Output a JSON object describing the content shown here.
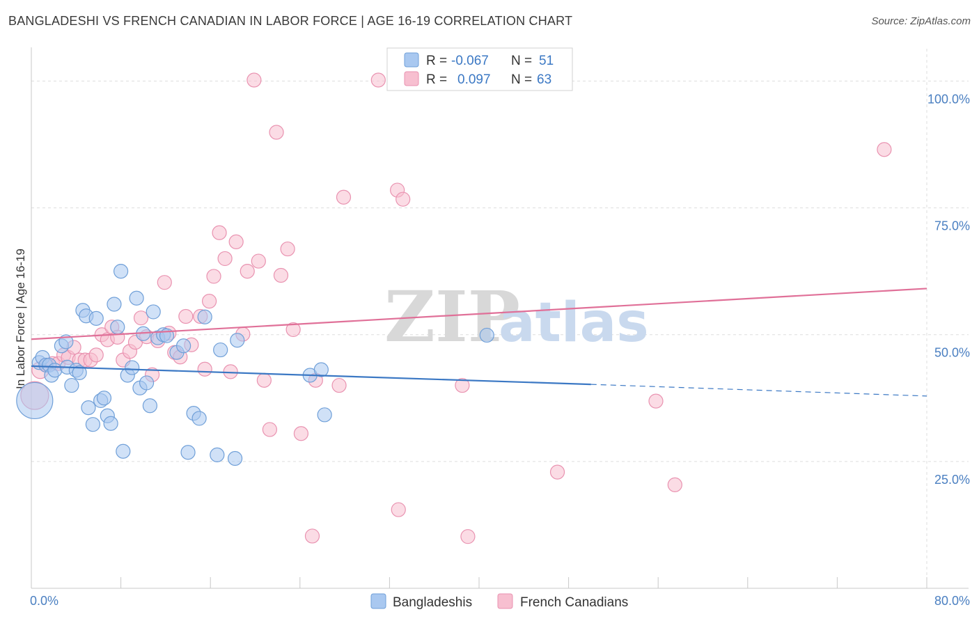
{
  "title": "BANGLADESHI VS FRENCH CANADIAN IN LABOR FORCE | AGE 16-19 CORRELATION CHART",
  "source": "Source: ZipAtlas.com",
  "watermark": {
    "zip": "ZIP",
    "atlas": "atlas"
  },
  "legend": {
    "r_label": "R =",
    "n_label": "N =",
    "rows": [
      {
        "r": "-0.067",
        "n": "51",
        "color": "#a9c8f0",
        "stroke": "#6f9fd8"
      },
      {
        "r": "0.097",
        "n": "63",
        "color": "#f7bfd0",
        "stroke": "#e992b0"
      }
    ]
  },
  "bottom_legend": [
    "Bangladeshis",
    "French Canadians"
  ],
  "chart_data": {
    "type": "scatter",
    "xlabel": "",
    "ylabel": "In Labor Force | Age 16-19",
    "xlim": [
      0,
      80
    ],
    "ylim": [
      0,
      105
    ],
    "x_tick_labels": [
      "0.0%",
      "80.0%"
    ],
    "y_ticks": [
      25,
      50,
      75,
      100
    ],
    "y_tick_labels": [
      "25.0%",
      "50.0%",
      "75.0%",
      "100.0%"
    ],
    "grid": true,
    "series": [
      {
        "name": "Bangladeshis",
        "color": "#a9c8f0",
        "stroke": "#6f9fd8",
        "trend_color": "#3b78c4",
        "trend": {
          "x0": 0,
          "y0": 43.8,
          "x1": 50,
          "y1": 40.2,
          "dash_x1": 80,
          "dash_y1": 37.9
        },
        "points": [
          [
            0.3,
            37,
            26
          ],
          [
            0.7,
            44.5,
            10
          ],
          [
            1.0,
            45.5,
            10
          ],
          [
            1.3,
            44,
            10
          ],
          [
            1.6,
            44,
            10
          ],
          [
            1.8,
            42,
            10
          ],
          [
            2.1,
            43,
            10
          ],
          [
            2.7,
            47.8,
            10
          ],
          [
            3.1,
            48.6,
            10
          ],
          [
            3.2,
            43.6,
            10
          ],
          [
            3.6,
            40,
            10
          ],
          [
            4.0,
            43,
            10
          ],
          [
            4.3,
            42.5,
            10
          ],
          [
            4.6,
            54.8,
            10
          ],
          [
            4.9,
            53.7,
            10
          ],
          [
            5.1,
            35.6,
            10
          ],
          [
            5.5,
            32.3,
            10
          ],
          [
            5.8,
            53.2,
            10
          ],
          [
            6.2,
            37,
            10
          ],
          [
            6.5,
            37.5,
            10
          ],
          [
            6.8,
            34,
            10
          ],
          [
            7.1,
            32.5,
            10
          ],
          [
            7.4,
            56,
            10
          ],
          [
            7.7,
            51.5,
            10
          ],
          [
            8.0,
            62.5,
            10
          ],
          [
            8.2,
            27,
            10
          ],
          [
            8.6,
            42,
            10
          ],
          [
            9.0,
            43.5,
            10
          ],
          [
            9.4,
            57.2,
            10
          ],
          [
            9.7,
            39.5,
            10
          ],
          [
            10.0,
            50.2,
            10
          ],
          [
            10.3,
            40.5,
            10
          ],
          [
            10.6,
            36,
            10
          ],
          [
            10.9,
            54.5,
            10
          ],
          [
            11.3,
            49.4,
            10
          ],
          [
            11.8,
            50,
            10
          ],
          [
            12.1,
            49.8,
            10
          ],
          [
            13.0,
            46.5,
            10
          ],
          [
            13.6,
            47.8,
            10
          ],
          [
            14.5,
            34.5,
            10
          ],
          [
            15.0,
            33.5,
            10
          ],
          [
            14.0,
            26.8,
            10
          ],
          [
            15.5,
            53.5,
            10
          ],
          [
            16.6,
            26.3,
            10
          ],
          [
            16.9,
            47,
            10
          ],
          [
            18.2,
            25.6,
            10
          ],
          [
            18.4,
            48.9,
            10
          ],
          [
            24.9,
            42,
            10
          ],
          [
            25.9,
            43.1,
            10
          ],
          [
            26.2,
            34.2,
            10
          ],
          [
            40.7,
            49.9,
            10
          ]
        ]
      },
      {
        "name": "French Canadians",
        "color": "#f7bfd0",
        "stroke": "#e992b0",
        "trend_color": "#e07098",
        "trend": {
          "x0": 0,
          "y0": 49.1,
          "x1": 80,
          "y1": 59.1
        },
        "points": [
          [
            0.3,
            38,
            20
          ],
          [
            0.8,
            43,
            12
          ],
          [
            1.4,
            44,
            10
          ],
          [
            1.9,
            44.3,
            10
          ],
          [
            2.4,
            44.3,
            10
          ],
          [
            2.9,
            46,
            10
          ],
          [
            3.3,
            45.5,
            10
          ],
          [
            3.8,
            47.5,
            10
          ],
          [
            4.3,
            45,
            10
          ],
          [
            4.8,
            45,
            10
          ],
          [
            5.3,
            45,
            10
          ],
          [
            5.8,
            46,
            10
          ],
          [
            6.3,
            50,
            10
          ],
          [
            6.8,
            49,
            10
          ],
          [
            7.2,
            51.5,
            10
          ],
          [
            7.7,
            49.5,
            10
          ],
          [
            8.2,
            45,
            10
          ],
          [
            8.8,
            46.7,
            10
          ],
          [
            9.3,
            48.5,
            10
          ],
          [
            9.8,
            53.3,
            10
          ],
          [
            10.3,
            49.6,
            10
          ],
          [
            10.8,
            42.1,
            10
          ],
          [
            11.3,
            48.8,
            10
          ],
          [
            11.9,
            60.3,
            10
          ],
          [
            12.3,
            50.3,
            10
          ],
          [
            12.8,
            46.5,
            10
          ],
          [
            13.3,
            45.6,
            10
          ],
          [
            13.8,
            53.6,
            10
          ],
          [
            14.3,
            48,
            10
          ],
          [
            15.1,
            53.6,
            10
          ],
          [
            15.5,
            43.2,
            10
          ],
          [
            15.9,
            56.6,
            10
          ],
          [
            16.3,
            61.5,
            10
          ],
          [
            16.8,
            70.1,
            10
          ],
          [
            17.3,
            65,
            10
          ],
          [
            17.8,
            42.7,
            10
          ],
          [
            18.3,
            68.3,
            10
          ],
          [
            18.9,
            50.1,
            10
          ],
          [
            19.3,
            62.5,
            10
          ],
          [
            19.9,
            100.2,
            10
          ],
          [
            20.3,
            64.5,
            10
          ],
          [
            20.8,
            41,
            10
          ],
          [
            21.3,
            31.3,
            10
          ],
          [
            21.9,
            89.9,
            10
          ],
          [
            22.3,
            61.7,
            10
          ],
          [
            22.9,
            66.9,
            10
          ],
          [
            23.4,
            51,
            10
          ],
          [
            24.1,
            30.5,
            10
          ],
          [
            25.1,
            10.3,
            10
          ],
          [
            25.4,
            41,
            10
          ],
          [
            27.5,
            40,
            10
          ],
          [
            27.9,
            77.1,
            10
          ],
          [
            31.0,
            100.2,
            10
          ],
          [
            32.7,
            78.5,
            10
          ],
          [
            33.2,
            76.7,
            10
          ],
          [
            32.8,
            15.5,
            10
          ],
          [
            38.5,
            40,
            10
          ],
          [
            39.0,
            10.2,
            10
          ],
          [
            39.2,
            100,
            10
          ],
          [
            47.0,
            22.9,
            10
          ],
          [
            55.8,
            36.9,
            10
          ],
          [
            57.5,
            20.4,
            10
          ],
          [
            76.2,
            86.5,
            10
          ]
        ]
      }
    ]
  }
}
